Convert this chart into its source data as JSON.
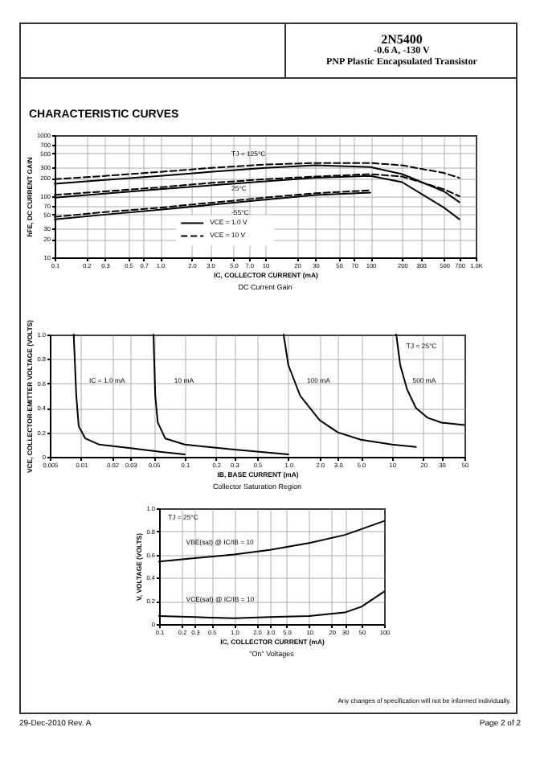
{
  "chart_data": [
    {
      "type": "line",
      "title": "DC Current Gain",
      "xlabel": "IC, COLLECTOR CURRENT (mA)",
      "ylabel": "hFE, DC CURRENT GAIN",
      "annotations": [
        "2N5400",
        "-0.6 A, -130 V",
        "PNP Plastic Encapsulated Transistor",
        "CHARACTERISTIC CURVES",
        "TJ = 125°C",
        "25°C",
        "-55°C"
      ],
      "log": "xy",
      "grid": true,
      "legend": "bottom",
      "xlim": [
        0.1,
        1000
      ],
      "xticks": [
        0.1,
        0.2,
        0.3,
        0.5,
        0.7,
        {
          "value": 1,
          "label": "1.0"
        },
        {
          "value": 2,
          "label": "2.0"
        },
        {
          "value": 3,
          "label": "3.0"
        },
        {
          "value": 5,
          "label": "5.0"
        },
        {
          "value": 7,
          "label": "7.0"
        },
        10,
        20,
        30,
        50,
        70,
        100,
        200,
        300,
        500,
        700,
        {
          "value": 1000,
          "label": "1.0K"
        }
      ],
      "ylim": [
        10,
        1000
      ],
      "yticks": [
        10,
        20,
        30,
        50,
        70,
        100,
        200,
        300,
        500,
        700,
        1000
      ],
      "x": [
        0.1,
        0.3,
        1,
        3,
        10,
        30,
        100,
        200,
        500,
        700
      ],
      "series": [
        {
          "name": "VCE = 1.0 V",
          "color": "#000000",
          "line_style": "solid",
          "values": [
            160,
            185,
            215,
            250,
            290,
            320,
            300,
            230,
            120,
            80
          ]
        },
        {
          "name": "VCE = 10 V",
          "color": "#000000",
          "line_style": "dashed",
          "values": [
            190,
            215,
            250,
            290,
            330,
            350,
            350,
            320,
            240,
            200
          ]
        },
        {
          "color": "#000000",
          "line_style": "solid",
          "values": [
            95,
            110,
            130,
            150,
            175,
            200,
            215,
            170,
            65,
            42
          ]
        },
        {
          "color": "#000000",
          "line_style": "dashed",
          "values": [
            105,
            120,
            140,
            165,
            190,
            210,
            230,
            210,
            130,
            100
          ]
        },
        {
          "color": "#000000",
          "line_style": "solid",
          "values": [
            42,
            50,
            60,
            72,
            88,
            105,
            115,
            null,
            null,
            null
          ]
        },
        {
          "color": "#000000",
          "line_style": "dashed",
          "values": [
            46,
            55,
            65,
            78,
            95,
            112,
            125,
            null,
            null,
            null
          ]
        }
      ]
    },
    {
      "type": "line",
      "title": "Collector Saturation Region",
      "xlabel": "IB, BASE CURRENT (mA)",
      "ylabel": "VCE, COLLECTOR-EMITTER VOLTAGE (VOLTS)",
      "annotations": [
        "IC = 1.0 mA",
        "10 mA",
        "100 mA",
        "500 mA",
        "TJ = 25°C"
      ],
      "log": "x",
      "grid": true,
      "xlim": [
        0.005,
        50
      ],
      "xticks": [
        0.005,
        0.01,
        0.02,
        0.03,
        0.05,
        0.1,
        0.2,
        0.3,
        0.5,
        {
          "value": 1,
          "label": "1.0"
        },
        {
          "value": 2,
          "label": "2.0"
        },
        {
          "value": 3,
          "label": "3.0"
        },
        {
          "value": 5,
          "label": "5.0"
        },
        10,
        20,
        30,
        50
      ],
      "ylim": [
        0,
        1
      ],
      "yticks": [
        0,
        0.2,
        0.4,
        0.6,
        0.8,
        {
          "value": 1,
          "label": "1.0"
        }
      ],
      "series": [
        {
          "color": "#000000",
          "line_style": "solid",
          "x": [
            0.0085,
            0.009,
            0.0095,
            0.011,
            0.015,
            0.03,
            0.06,
            0.1
          ],
          "values": [
            1.0,
            0.5,
            0.25,
            0.15,
            0.1,
            0.07,
            0.04,
            0.02
          ]
        },
        {
          "color": "#000000",
          "line_style": "solid",
          "x": [
            0.05,
            0.052,
            0.055,
            0.065,
            0.1,
            0.3,
            1.0
          ],
          "values": [
            1.0,
            0.5,
            0.28,
            0.15,
            0.1,
            0.06,
            0.02
          ]
        },
        {
          "color": "#000000",
          "line_style": "solid",
          "x": [
            0.9,
            1.0,
            1.3,
            2,
            3,
            5,
            10,
            17
          ],
          "values": [
            1.0,
            0.75,
            0.5,
            0.3,
            0.2,
            0.14,
            0.1,
            0.08
          ]
        },
        {
          "color": "#000000",
          "line_style": "solid",
          "x": [
            11,
            12,
            14,
            17,
            22,
            30,
            50
          ],
          "values": [
            1.0,
            0.75,
            0.55,
            0.4,
            0.32,
            0.28,
            0.26
          ]
        }
      ]
    },
    {
      "type": "line",
      "title": "\"On\" Voltages",
      "xlabel": "IC, COLLECTOR CURRENT (mA)",
      "ylabel": "V, VOLTAGE (VOLTS)",
      "annotations": [
        "TJ = 25°C",
        "VBE(sat) @ IC/IB = 10",
        "VCE(sat) @ IC/IB = 10",
        "Any changes of specification will not be informed individually.",
        "29-Dec-2010 Rev. A",
        "Page 2 of 2"
      ],
      "log": "x",
      "grid": true,
      "xlim": [
        0.1,
        100
      ],
      "xticks": [
        0.1,
        0.2,
        0.3,
        0.5,
        {
          "value": 1,
          "label": "1.0"
        },
        {
          "value": 2,
          "label": "2.0"
        },
        {
          "value": 3,
          "label": "3.0"
        },
        {
          "value": 5,
          "label": "5.0"
        },
        10,
        20,
        30,
        50,
        100
      ],
      "ylim": [
        0,
        1
      ],
      "yticks": [
        0,
        0.2,
        0.4,
        0.6,
        0.8,
        {
          "value": 1,
          "label": "1.0"
        }
      ],
      "x": [
        0.1,
        0.3,
        1,
        3,
        10,
        30,
        50,
        100
      ],
      "series": [
        {
          "color": "#000000",
          "line_style": "solid",
          "values": [
            0.54,
            0.57,
            0.6,
            0.64,
            0.7,
            0.77,
            0.82,
            0.89
          ]
        },
        {
          "color": "#000000",
          "line_style": "solid",
          "values": [
            0.07,
            0.06,
            0.05,
            0.06,
            0.07,
            0.1,
            0.15,
            0.28
          ]
        }
      ]
    }
  ]
}
